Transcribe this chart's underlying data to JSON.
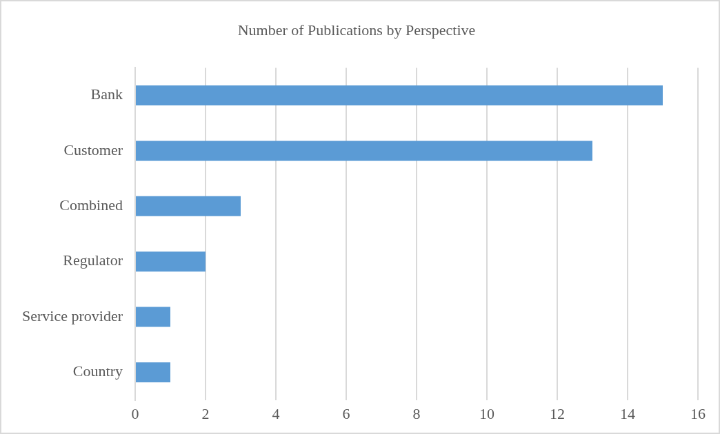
{
  "chart_data": {
    "type": "bar",
    "orientation": "horizontal",
    "title": "Number of Publications by Perspective",
    "categories": [
      "Bank",
      "Customer",
      "Combined",
      "Regulator",
      "Service provider",
      "Country"
    ],
    "values": [
      15,
      13,
      3,
      2,
      1,
      1
    ],
    "color": "#5b9bd5",
    "xlim": [
      0,
      16
    ],
    "xticks": [
      0,
      2,
      4,
      6,
      8,
      10,
      12,
      14,
      16
    ],
    "grid": "x",
    "legend": false
  }
}
